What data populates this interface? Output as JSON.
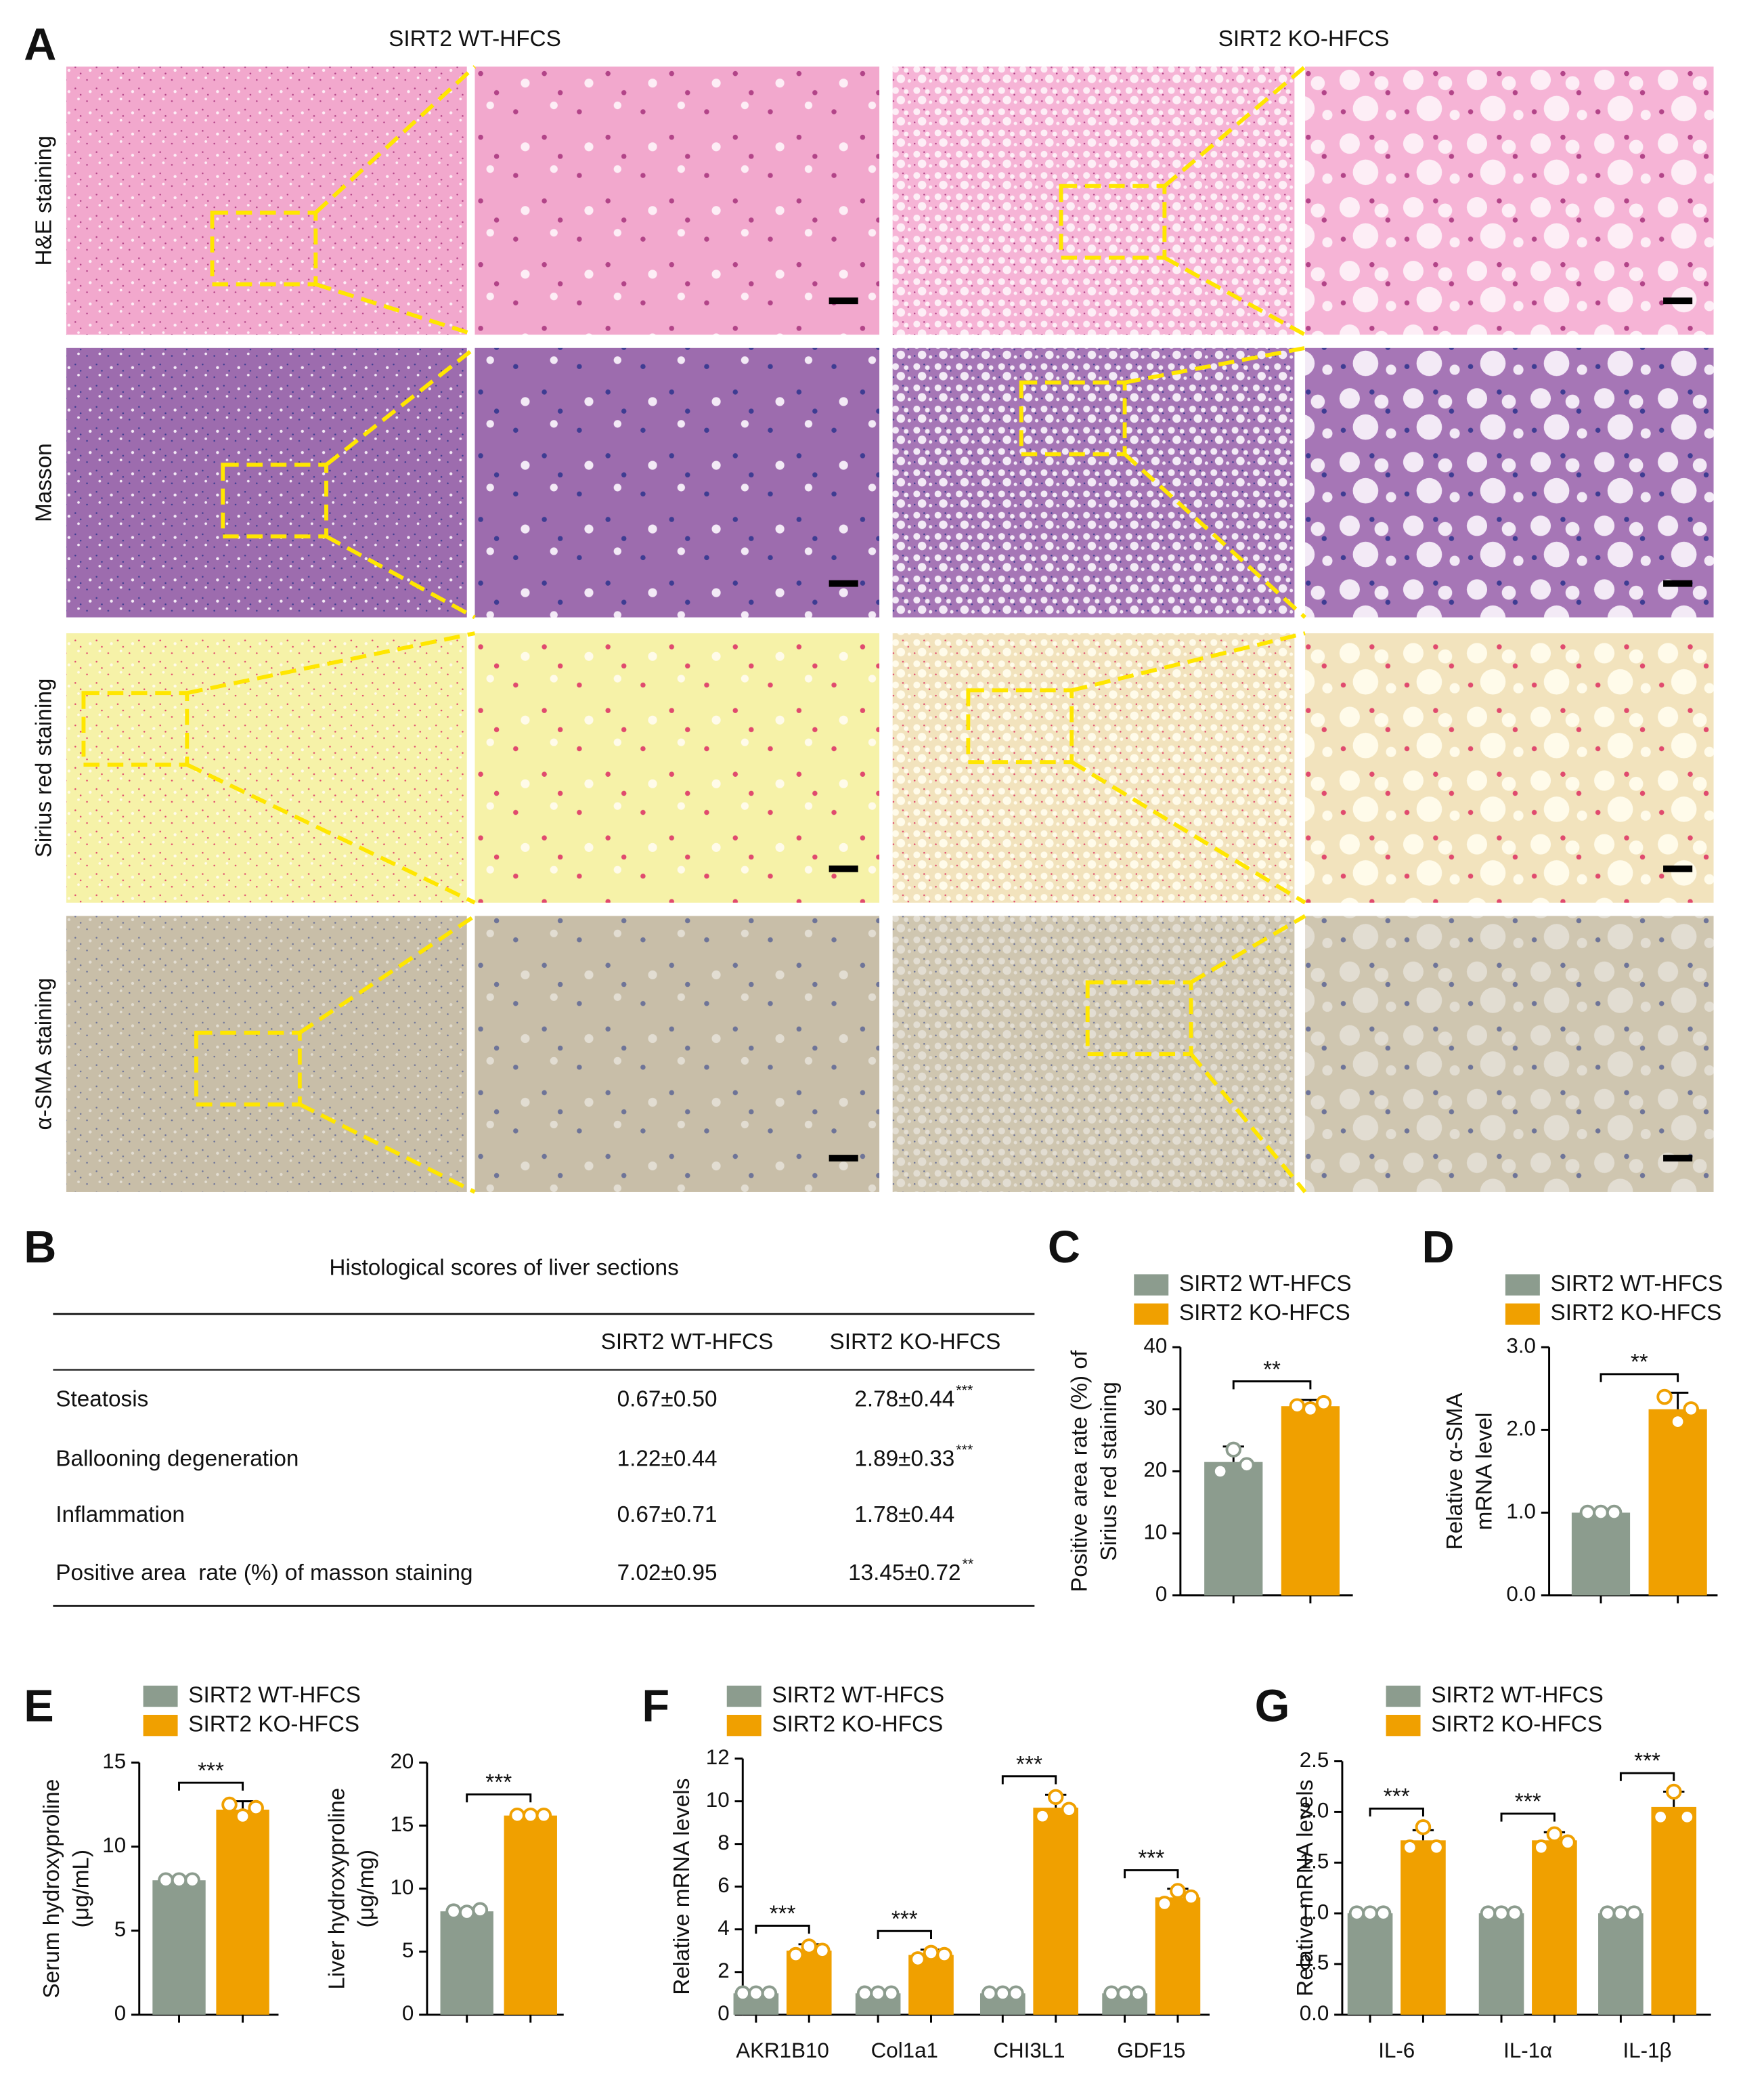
{
  "panel_labels": [
    "A",
    "B",
    "C",
    "D",
    "E",
    "F",
    "G"
  ],
  "panel_a": {
    "columns": [
      "SIRT2 WT-HFCS",
      "SIRT2 KO-HFCS"
    ],
    "rows": [
      "H&E staining",
      "Masson",
      "Sirius red staining",
      "α-SMA staining"
    ]
  },
  "table": {
    "title": "Histological scores of liver sections",
    "header": [
      "SIRT2 WT-HFCS",
      "SIRT2 KO-HFCS"
    ],
    "rows": [
      {
        "label": "Steatosis",
        "wt": "0.67±0.50",
        "ko": "2.78±0.44",
        "sig": "***"
      },
      {
        "label": "Ballooning degeneration",
        "wt": "1.22±0.44",
        "ko": "1.89±0.33",
        "sig": "***"
      },
      {
        "label": "Inflammation",
        "wt": "0.67±0.71",
        "ko": "1.78±0.44"
      },
      {
        "label": "Positive area  rate (%) of masson staining",
        "wt": "7.02±0.95",
        "ko": "13.45±0.72",
        "sig": "**"
      }
    ]
  },
  "chart_data": [
    {
      "type": "bar",
      "ylabel": [
        "Positive area rate (%) of",
        "Sirius red staining"
      ],
      "ylim": [
        0,
        40
      ],
      "yticks": [
        0,
        10,
        20,
        30,
        40
      ],
      "significance": [
        "**"
      ],
      "series": [
        {
          "name": "SIRT2 WT-HFCS",
          "color": "#8c9c8e",
          "values": [
            21.5
          ],
          "errors": [
            2.5
          ],
          "points": [
            [
              20,
              23.5,
              21
            ]
          ]
        },
        {
          "name": "SIRT2 KO-HFCS",
          "color": "#f0a000",
          "values": [
            30.5
          ],
          "errors": [
            1
          ],
          "points": [
            [
              30.5,
              30,
              31
            ]
          ]
        }
      ]
    },
    {
      "type": "bar",
      "ylabel": [
        "Relative α-SMA",
        "mRNA level"
      ],
      "ylim": [
        0,
        3
      ],
      "yticks": [
        {
          "value": 0,
          "label": "0.0"
        },
        {
          "value": 1,
          "label": "1.0"
        },
        {
          "value": 2,
          "label": "2.0"
        },
        {
          "value": 3,
          "label": "3.0"
        }
      ],
      "significance": [
        "**"
      ],
      "series": [
        {
          "name": "SIRT2 WT-HFCS",
          "color": "#8c9c8e",
          "values": [
            1
          ],
          "errors": [
            0
          ],
          "points": [
            [
              1,
              1,
              1
            ]
          ]
        },
        {
          "name": "SIRT2 KO-HFCS",
          "color": "#f0a000",
          "values": [
            2.25
          ],
          "errors": [
            0.2
          ],
          "points": [
            [
              2.4,
              2.1,
              2.25
            ]
          ]
        }
      ]
    },
    {
      "type": "bar",
      "ylabel": [
        "Serum hydroxyproline",
        "(μg/mL)"
      ],
      "ylim": [
        0,
        15
      ],
      "yticks": [
        0,
        5,
        10,
        15
      ],
      "significance": [
        "***"
      ],
      "series": [
        {
          "name": "SIRT2 WT-HFCS",
          "color": "#8c9c8e",
          "values": [
            8
          ],
          "errors": [
            0.2
          ],
          "points": [
            [
              8,
              8,
              8
            ]
          ]
        },
        {
          "name": "SIRT2 KO-HFCS",
          "color": "#f0a000",
          "values": [
            12.2
          ],
          "errors": [
            0.5
          ],
          "points": [
            [
              12.5,
              11.8,
              12.3
            ]
          ]
        }
      ]
    },
    {
      "type": "bar",
      "ylabel": [
        "Liver hydroxyproline",
        "(μg/mg)"
      ],
      "ylim": [
        0,
        20
      ],
      "yticks": [
        0,
        5,
        10,
        15,
        20
      ],
      "significance": [
        "***"
      ],
      "series": [
        {
          "color": "#8c9c8e",
          "values": [
            8.2
          ],
          "errors": [
            0.2
          ],
          "points": [
            [
              8.2,
              8.1,
              8.3
            ]
          ]
        },
        {
          "color": "#f0a000",
          "values": [
            15.8
          ],
          "errors": [
            0.2
          ],
          "points": [
            [
              15.8,
              15.8,
              15.8
            ]
          ]
        }
      ]
    },
    {
      "type": "bar",
      "ylabel": [
        "Relative mRNA levels"
      ],
      "categories": [
        "AKR1B10",
        "Col1a1",
        "CHI3L1",
        "GDF15"
      ],
      "ylim": [
        0,
        12
      ],
      "yticks": [
        0,
        2,
        4,
        6,
        8,
        10,
        12
      ],
      "significance": [
        "***",
        "***",
        "***",
        "***"
      ],
      "series": [
        {
          "name": "SIRT2 WT-HFCS",
          "color": "#8c9c8e",
          "values": [
            1,
            1,
            1,
            1
          ],
          "errors": [
            0,
            0,
            0,
            0
          ],
          "points": [
            [
              1,
              1,
              1
            ],
            [
              1,
              1,
              1
            ],
            [
              1,
              1,
              1
            ],
            [
              1,
              1,
              1
            ]
          ]
        },
        {
          "name": "SIRT2 KO-HFCS",
          "color": "#f0a000",
          "values": [
            3.0,
            2.8,
            9.7,
            5.5
          ],
          "errors": [
            0.3,
            0.25,
            0.6,
            0.4
          ],
          "points": [
            [
              2.8,
              3.2,
              3.0
            ],
            [
              2.6,
              2.9,
              2.8
            ],
            [
              9.3,
              10.2,
              9.6
            ],
            [
              5.2,
              5.8,
              5.5
            ]
          ]
        }
      ]
    },
    {
      "type": "bar",
      "ylabel": [
        "Relative mRNA levels"
      ],
      "categories": [
        "IL-6",
        "IL-1α",
        "IL-1β"
      ],
      "ylim": [
        0,
        2.5
      ],
      "yticks": [
        {
          "value": 0,
          "label": "0.0"
        },
        {
          "value": 0.5,
          "label": "0.5"
        },
        {
          "value": 1,
          "label": "1.0"
        },
        {
          "value": 1.5,
          "label": "1.5"
        },
        {
          "value": 2,
          "label": "2.0"
        },
        {
          "value": 2.5,
          "label": "2.5"
        }
      ],
      "significance": [
        "***",
        "***",
        "***"
      ],
      "series": [
        {
          "name": "SIRT2 WT-HFCS",
          "color": "#8c9c8e",
          "values": [
            1,
            1,
            1
          ],
          "errors": [
            0,
            0,
            0
          ],
          "points": [
            [
              1,
              1,
              1
            ],
            [
              1,
              1,
              1
            ],
            [
              1,
              1,
              1
            ]
          ]
        },
        {
          "name": "SIRT2 KO-HFCS",
          "color": "#f0a000",
          "values": [
            1.72,
            1.72,
            2.05
          ],
          "errors": [
            0.1,
            0.08,
            0.15
          ],
          "points": [
            [
              1.65,
              1.85,
              1.65
            ],
            [
              1.65,
              1.78,
              1.7
            ],
            [
              1.95,
              2.2,
              1.95
            ]
          ]
        }
      ]
    }
  ]
}
